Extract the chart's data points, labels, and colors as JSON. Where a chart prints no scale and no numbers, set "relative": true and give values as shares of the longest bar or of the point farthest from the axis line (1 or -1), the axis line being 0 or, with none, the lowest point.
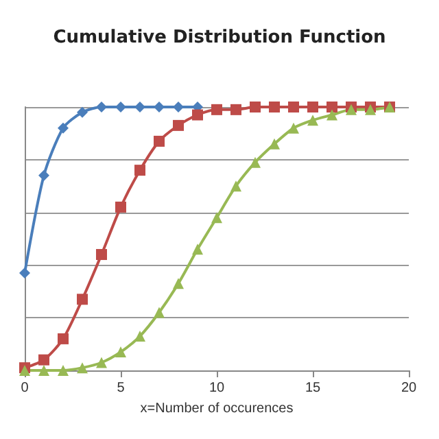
{
  "chart_data": {
    "type": "line",
    "title": "Cumulative Distribution Function",
    "xlabel": "x=Number of occurences",
    "relative": true,
    "x": [
      0,
      1,
      2,
      3,
      4,
      5,
      6,
      7,
      8,
      9,
      10,
      11,
      12,
      13,
      14,
      15,
      16,
      17,
      18,
      19
    ],
    "xlim": [
      0,
      20
    ],
    "xticks": [
      0,
      5,
      10,
      15,
      20
    ],
    "grid": "y",
    "series": [
      {
        "color": "#4a7ebb",
        "marker": "diamond",
        "values": [
          0.37,
          0.74,
          0.92,
          0.98,
          1,
          1,
          1,
          1,
          1,
          1,
          null,
          null,
          null,
          null,
          null,
          null,
          null,
          null,
          null,
          null
        ]
      },
      {
        "color": "#be4b48",
        "marker": "square",
        "values": [
          0.01,
          0.04,
          0.12,
          0.27,
          0.44,
          0.62,
          0.76,
          0.87,
          0.93,
          0.97,
          0.99,
          0.99,
          1,
          1,
          1,
          1,
          1,
          1,
          1,
          1
        ]
      },
      {
        "color": "#98b954",
        "marker": "triangle",
        "values": [
          0,
          0,
          0,
          0.01,
          0.03,
          0.07,
          0.13,
          0.22,
          0.33,
          0.46,
          0.58,
          0.7,
          0.79,
          0.86,
          0.92,
          0.95,
          0.97,
          0.99,
          0.99,
          1
        ]
      }
    ]
  }
}
